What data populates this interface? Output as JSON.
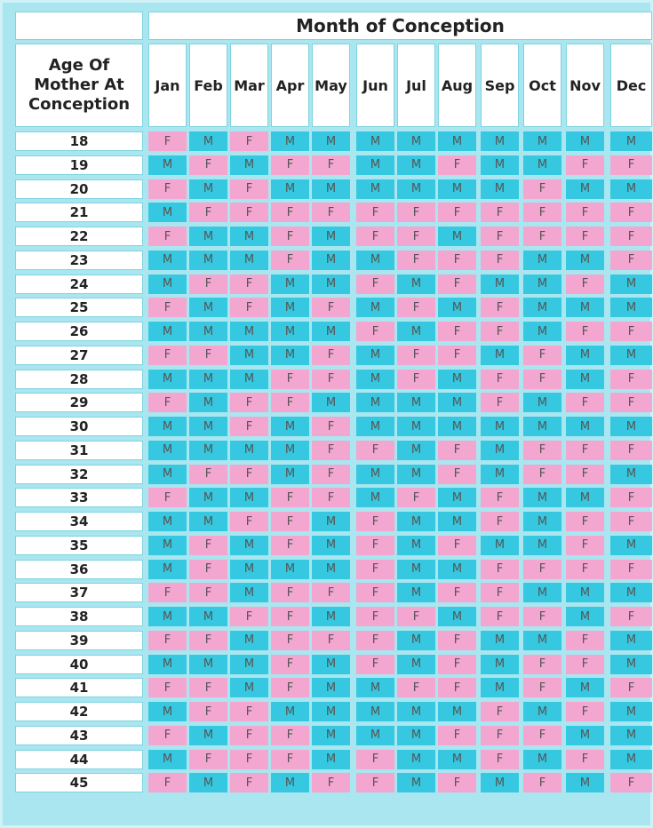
{
  "header": {
    "corner": "",
    "title": "Month of Conception",
    "age_heading": [
      "Age Of",
      "Mother At",
      "Conception"
    ]
  },
  "months": [
    "Jan",
    "Feb",
    "Mar",
    "Apr",
    "May",
    "Jun",
    "Jul",
    "Aug",
    "Sep",
    "Oct",
    "Nov",
    "Dec"
  ],
  "rows": [
    {
      "age": "18",
      "cells": [
        "F",
        "M",
        "F",
        "M",
        "M",
        "M",
        "M",
        "M",
        "M",
        "M",
        "M",
        "M"
      ]
    },
    {
      "age": "19",
      "cells": [
        "M",
        "F",
        "M",
        "F",
        "F",
        "M",
        "M",
        "F",
        "M",
        "M",
        "F",
        "F"
      ]
    },
    {
      "age": "20",
      "cells": [
        "F",
        "M",
        "F",
        "M",
        "M",
        "M",
        "M",
        "M",
        "M",
        "F",
        "M",
        "M"
      ]
    },
    {
      "age": "21",
      "cells": [
        "M",
        "F",
        "F",
        "F",
        "F",
        "F",
        "F",
        "F",
        "F",
        "F",
        "F",
        "F"
      ]
    },
    {
      "age": "22",
      "cells": [
        "F",
        "M",
        "M",
        "F",
        "M",
        "F",
        "F",
        "M",
        "F",
        "F",
        "F",
        "F"
      ]
    },
    {
      "age": "23",
      "cells": [
        "M",
        "M",
        "M",
        "F",
        "M",
        "M",
        "F",
        "F",
        "F",
        "M",
        "M",
        "F"
      ]
    },
    {
      "age": "24",
      "cells": [
        "M",
        "F",
        "F",
        "M",
        "M",
        "F",
        "M",
        "F",
        "M",
        "M",
        "F",
        "M"
      ]
    },
    {
      "age": "25",
      "cells": [
        "F",
        "M",
        "F",
        "M",
        "F",
        "M",
        "F",
        "M",
        "F",
        "M",
        "M",
        "M"
      ]
    },
    {
      "age": "26",
      "cells": [
        "M",
        "M",
        "M",
        "M",
        "M",
        "F",
        "M",
        "F",
        "F",
        "M",
        "F",
        "F"
      ]
    },
    {
      "age": "27",
      "cells": [
        "F",
        "F",
        "M",
        "M",
        "F",
        "M",
        "F",
        "F",
        "M",
        "F",
        "M",
        "M"
      ]
    },
    {
      "age": "28",
      "cells": [
        "M",
        "M",
        "M",
        "F",
        "F",
        "M",
        "F",
        "M",
        "F",
        "F",
        "M",
        "F"
      ]
    },
    {
      "age": "29",
      "cells": [
        "F",
        "M",
        "F",
        "F",
        "M",
        "M",
        "M",
        "M",
        "F",
        "M",
        "F",
        "F"
      ]
    },
    {
      "age": "30",
      "cells": [
        "M",
        "M",
        "F",
        "M",
        "F",
        "M",
        "M",
        "M",
        "M",
        "M",
        "M",
        "M"
      ]
    },
    {
      "age": "31",
      "cells": [
        "M",
        "M",
        "M",
        "M",
        "F",
        "F",
        "M",
        "F",
        "M",
        "F",
        "F",
        "F"
      ]
    },
    {
      "age": "32",
      "cells": [
        "M",
        "F",
        "F",
        "M",
        "F",
        "M",
        "M",
        "F",
        "M",
        "F",
        "F",
        "M"
      ]
    },
    {
      "age": "33",
      "cells": [
        "F",
        "M",
        "M",
        "F",
        "F",
        "M",
        "F",
        "M",
        "F",
        "M",
        "M",
        "F"
      ]
    },
    {
      "age": "34",
      "cells": [
        "M",
        "M",
        "F",
        "F",
        "M",
        "F",
        "M",
        "M",
        "F",
        "M",
        "F",
        "F"
      ]
    },
    {
      "age": "35",
      "cells": [
        "M",
        "F",
        "M",
        "F",
        "M",
        "F",
        "M",
        "F",
        "M",
        "M",
        "F",
        "M"
      ]
    },
    {
      "age": "36",
      "cells": [
        "M",
        "F",
        "M",
        "M",
        "M",
        "F",
        "M",
        "M",
        "F",
        "F",
        "F",
        "F"
      ]
    },
    {
      "age": "37",
      "cells": [
        "F",
        "F",
        "M",
        "F",
        "F",
        "F",
        "M",
        "F",
        "F",
        "M",
        "M",
        "M"
      ]
    },
    {
      "age": "38",
      "cells": [
        "M",
        "M",
        "F",
        "F",
        "M",
        "F",
        "F",
        "M",
        "F",
        "F",
        "M",
        "F"
      ]
    },
    {
      "age": "39",
      "cells": [
        "F",
        "F",
        "M",
        "F",
        "F",
        "F",
        "M",
        "F",
        "M",
        "M",
        "F",
        "M"
      ]
    },
    {
      "age": "40",
      "cells": [
        "M",
        "M",
        "M",
        "F",
        "M",
        "F",
        "M",
        "F",
        "M",
        "F",
        "F",
        "M"
      ]
    },
    {
      "age": "41",
      "cells": [
        "F",
        "F",
        "M",
        "F",
        "M",
        "M",
        "F",
        "F",
        "M",
        "F",
        "M",
        "F"
      ]
    },
    {
      "age": "42",
      "cells": [
        "M",
        "F",
        "F",
        "M",
        "M",
        "M",
        "M",
        "M",
        "F",
        "M",
        "F",
        "M"
      ]
    },
    {
      "age": "43",
      "cells": [
        "F",
        "M",
        "F",
        "F",
        "M",
        "M",
        "M",
        "F",
        "F",
        "F",
        "M",
        "M"
      ]
    },
    {
      "age": "44",
      "cells": [
        "M",
        "F",
        "F",
        "F",
        "M",
        "F",
        "M",
        "M",
        "F",
        "M",
        "F",
        "M"
      ]
    },
    {
      "age": "45",
      "cells": [
        "F",
        "M",
        "F",
        "M",
        "F",
        "F",
        "M",
        "F",
        "M",
        "F",
        "M",
        "F"
      ]
    }
  ],
  "colors": {
    "female": "#f3a6cf",
    "male": "#36c8e0",
    "header_bg": "#ffffff",
    "frame_bg": "#a9e6f0"
  }
}
